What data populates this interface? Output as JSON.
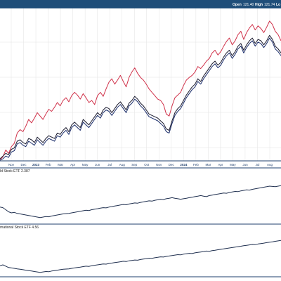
{
  "header": {
    "open_label": "Open",
    "open_value": "121.40",
    "high_label": "High",
    "high_value": "121.74",
    "low_label": "Lo"
  },
  "colors": {
    "header_bg": "#1f4e79",
    "series_red": "#d0324a",
    "series_navy": "#1c2e6b",
    "series_dark": "#1a1a2e",
    "panel_line": "#1f2f4f",
    "tick_text": "#1f3f6e"
  },
  "chart_data": [
    {
      "type": "line",
      "x_ticks": [
        "Nov",
        "Dec",
        "2023",
        "Feb",
        "Mar",
        "Apr",
        "May",
        "Jun",
        "Jul",
        "Aug",
        "Sep",
        "Oct",
        "Nov",
        "Dec",
        "2024",
        "Feb",
        "Mar",
        "Apr",
        "May",
        "Jun",
        "Jul",
        "Aug"
      ],
      "grid": true,
      "series": [
        {
          "color": "#d0324a",
          "values": [
            0,
            5,
            15,
            10,
            20,
            25,
            40,
            45,
            42,
            50,
            60,
            55,
            62,
            70,
            65,
            60,
            68,
            75,
            72,
            78,
            85,
            80,
            88,
            92,
            86,
            95,
            100,
            96,
            90,
            98,
            92,
            85,
            88,
            82,
            95,
            100,
            94,
            105,
            115,
            120,
            112,
            118,
            125,
            116,
            108,
            122,
            130,
            136,
            128,
            122,
            118,
            112,
            105,
            100,
            95,
            90,
            88,
            82,
            68,
            65,
            80,
            92,
            96,
            100,
            110,
            118,
            122,
            125,
            130,
            138,
            135,
            140,
            146,
            150,
            158,
            162,
            155,
            160,
            168,
            175,
            180,
            170,
            176,
            185,
            190,
            178,
            188,
            195,
            200,
            192,
            198,
            194,
            188,
            196,
            205,
            200,
            190,
            185,
            176
          ]
        },
        {
          "color": "#1c2e6b",
          "values": [
            0,
            2,
            6,
            4,
            12,
            14,
            24,
            26,
            22,
            20,
            28,
            25,
            22,
            30,
            26,
            22,
            28,
            32,
            30,
            28,
            36,
            34,
            40,
            44,
            38,
            48,
            52,
            48,
            44,
            56,
            52,
            48,
            54,
            60,
            66,
            62,
            70,
            74,
            72,
            66,
            72,
            78,
            82,
            76,
            70,
            80,
            84,
            90,
            86,
            80,
            76,
            70,
            64,
            62,
            60,
            58,
            54,
            50,
            42,
            40,
            54,
            66,
            72,
            76,
            84,
            92,
            98,
            104,
            108,
            116,
            112,
            120,
            126,
            132,
            138,
            142,
            136,
            140,
            148,
            154,
            158,
            150,
            156,
            164,
            168,
            158,
            166,
            172,
            176,
            168,
            174,
            172,
            166,
            172,
            180,
            174,
            164,
            160,
            154
          ]
        },
        {
          "color": "#1a1a2e",
          "values": [
            2,
            6,
            10,
            8,
            16,
            18,
            28,
            30,
            26,
            24,
            32,
            30,
            26,
            34,
            30,
            26,
            32,
            36,
            34,
            32,
            40,
            38,
            44,
            48,
            42,
            52,
            56,
            52,
            48,
            60,
            56,
            52,
            58,
            64,
            70,
            66,
            74,
            78,
            76,
            70,
            76,
            82,
            86,
            80,
            74,
            84,
            88,
            94,
            90,
            84,
            80,
            74,
            68,
            66,
            64,
            62,
            58,
            54,
            46,
            44,
            58,
            70,
            76,
            80,
            88,
            96,
            102,
            108,
            112,
            120,
            116,
            124,
            130,
            136,
            142,
            146,
            140,
            144,
            152,
            158,
            162,
            154,
            160,
            168,
            172,
            162,
            170,
            176,
            180,
            172,
            178,
            176,
            170,
            176,
            184,
            178,
            168,
            164,
            158
          ]
        }
      ]
    },
    {
      "type": "line",
      "label": "ld Stock ETF 2.387",
      "series": [
        {
          "color": "#1f2f4f",
          "values": [
            40,
            38,
            30,
            22,
            18,
            20,
            16,
            14,
            12,
            10,
            8,
            6,
            4,
            2,
            0,
            2,
            4,
            3,
            6,
            8,
            10,
            12,
            14,
            15,
            16,
            18,
            20,
            22,
            24,
            26,
            28,
            27,
            30,
            32,
            34,
            36,
            38,
            37,
            40,
            42,
            44,
            46,
            48,
            50,
            49,
            52,
            54,
            56,
            55,
            58,
            60,
            62,
            64,
            63,
            66,
            68,
            70,
            69,
            72,
            74,
            76,
            74,
            72,
            70,
            72,
            74,
            76,
            78,
            80,
            82,
            84,
            82,
            80,
            84,
            86,
            88,
            90,
            92,
            94,
            93,
            96,
            98,
            100,
            99,
            102,
            104,
            106,
            105,
            108,
            110,
            112,
            114,
            116,
            118,
            120,
            119,
            118,
            120,
            122
          ]
        }
      ]
    },
    {
      "type": "line",
      "label": "rnational Stock ETF 4.56",
      "series": [
        {
          "color": "#1f2f4f",
          "values": [
            30,
            34,
            28,
            22,
            20,
            18,
            16,
            14,
            12,
            10,
            8,
            6,
            4,
            2,
            0,
            2,
            4,
            3,
            6,
            8,
            10,
            12,
            14,
            15,
            16,
            18,
            20,
            22,
            24,
            26,
            28,
            27,
            30,
            32,
            34,
            36,
            38,
            37,
            40,
            42,
            44,
            46,
            48,
            50,
            49,
            52,
            54,
            56,
            55,
            58,
            60,
            62,
            64,
            63,
            66,
            68,
            70,
            69,
            72,
            74,
            76,
            78,
            80,
            79,
            82,
            84,
            86,
            85,
            88,
            90,
            92,
            94,
            96,
            95,
            98,
            100,
            102,
            104,
            106,
            108,
            110,
            112,
            114,
            116,
            118,
            120,
            122,
            124,
            126,
            125,
            128,
            130,
            132,
            134,
            136,
            138,
            140,
            142,
            144
          ]
        }
      ]
    }
  ]
}
